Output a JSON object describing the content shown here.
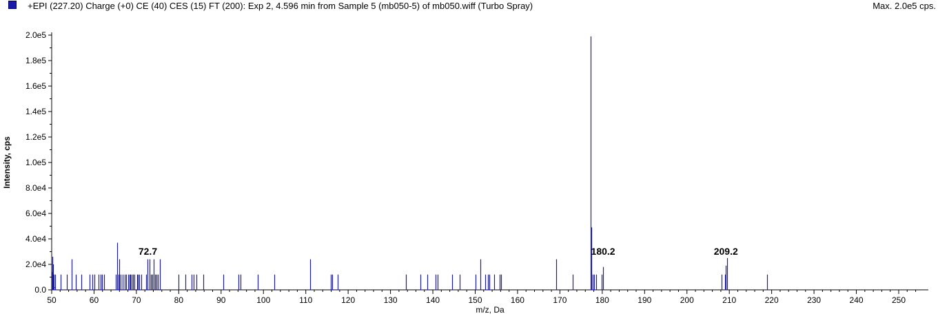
{
  "header": {
    "title": "+EPI (227.20) Charge (+0) CE (40) CES (15) FT (200): Exp 2, 4.596 min from Sample 5 (mb050-5) of mb050.wiff (Turbo Spray)",
    "max_label": "Max. 2.0e5 cps."
  },
  "chart_data": {
    "type": "bar",
    "xlabel": "m/z, Da",
    "ylabel": "Intensity, cps",
    "xlim": [
      50,
      257
    ],
    "ylim": [
      0,
      200000
    ],
    "x_ticks": [
      50,
      60,
      70,
      80,
      90,
      100,
      110,
      120,
      130,
      140,
      150,
      160,
      170,
      180,
      190,
      200,
      210,
      220,
      230,
      240,
      250
    ],
    "y_ticks": [
      {
        "value": 0,
        "label": "0.0"
      },
      {
        "value": 20000,
        "label": "2.0e4"
      },
      {
        "value": 40000,
        "label": "4.0e4"
      },
      {
        "value": 60000,
        "label": "6.0e4"
      },
      {
        "value": 80000,
        "label": "8.0e4"
      },
      {
        "value": 100000,
        "label": "1.0e5"
      },
      {
        "value": 120000,
        "label": "1.2e5"
      },
      {
        "value": 140000,
        "label": "1.4e5"
      },
      {
        "value": 160000,
        "label": "1.6e5"
      },
      {
        "value": 180000,
        "label": "1.8e5"
      },
      {
        "value": 200000,
        "label": "2.0e5"
      }
    ],
    "annotations": [
      {
        "x": 72.7,
        "label": "72.7"
      },
      {
        "x": 180.2,
        "label": "180.2"
      },
      {
        "x": 209.2,
        "label": "209.2"
      }
    ],
    "color": "#1a1aa8",
    "peaks": [
      [
        50.0,
        14000
      ],
      [
        50.1,
        26000
      ],
      [
        50.3,
        20000
      ],
      [
        50.5,
        12000
      ],
      [
        50.8,
        12000
      ],
      [
        52.1,
        12000
      ],
      [
        53.5,
        12000
      ],
      [
        54.8,
        24000
      ],
      [
        55.7,
        12000
      ],
      [
        57.0,
        12000
      ],
      [
        59.0,
        12000
      ],
      [
        59.6,
        12000
      ],
      [
        60.1,
        12000
      ],
      [
        61.1,
        12000
      ],
      [
        61.6,
        12000
      ],
      [
        61.9,
        12000
      ],
      [
        62.4,
        12000
      ],
      [
        65.2,
        12000
      ],
      [
        65.4,
        37000
      ],
      [
        65.8,
        12000
      ],
      [
        66.0,
        24000
      ],
      [
        66.3,
        12000
      ],
      [
        66.8,
        12000
      ],
      [
        67.3,
        12000
      ],
      [
        67.6,
        12000
      ],
      [
        68.1,
        12000
      ],
      [
        68.4,
        12000
      ],
      [
        68.6,
        12000
      ],
      [
        68.9,
        12000
      ],
      [
        69.2,
        12000
      ],
      [
        69.6,
        12000
      ],
      [
        70.1,
        12000
      ],
      [
        70.4,
        12000
      ],
      [
        70.7,
        12000
      ],
      [
        71.1,
        12000
      ],
      [
        72.3,
        12000
      ],
      [
        72.7,
        24000
      ],
      [
        73.1,
        24000
      ],
      [
        73.4,
        12000
      ],
      [
        73.7,
        12000
      ],
      [
        74.1,
        24000
      ],
      [
        74.4,
        12000
      ],
      [
        74.7,
        12000
      ],
      [
        75.1,
        12000
      ],
      [
        75.6,
        24000
      ],
      [
        80.0,
        12000
      ],
      [
        81.5,
        12000
      ],
      [
        83.0,
        12000
      ],
      [
        83.6,
        12000
      ],
      [
        84.1,
        12000
      ],
      [
        85.8,
        12000
      ],
      [
        90.5,
        12000
      ],
      [
        94.1,
        12000
      ],
      [
        94.6,
        12000
      ],
      [
        98.6,
        12000
      ],
      [
        102.6,
        12000
      ],
      [
        111.1,
        24000
      ],
      [
        115.9,
        12000
      ],
      [
        116.3,
        12000
      ],
      [
        117.6,
        12000
      ],
      [
        133.7,
        12000
      ],
      [
        137.1,
        12000
      ],
      [
        138.7,
        12000
      ],
      [
        140.6,
        12000
      ],
      [
        141.1,
        12000
      ],
      [
        144.6,
        12000
      ],
      [
        146.3,
        12000
      ],
      [
        150.1,
        12000
      ],
      [
        151.2,
        24000
      ],
      [
        152.3,
        12000
      ],
      [
        153.0,
        12000
      ],
      [
        153.3,
        12000
      ],
      [
        154.4,
        12000
      ],
      [
        155.7,
        12000
      ],
      [
        156.1,
        12000
      ],
      [
        169.1,
        24000
      ],
      [
        173.1,
        12000
      ],
      [
        177.2,
        199000
      ],
      [
        177.5,
        49000
      ],
      [
        177.8,
        12000
      ],
      [
        178.1,
        12000
      ],
      [
        178.5,
        12000
      ],
      [
        179.9,
        12000
      ],
      [
        180.2,
        18000
      ],
      [
        208.2,
        12000
      ],
      [
        209.0,
        12000
      ],
      [
        209.2,
        19000
      ],
      [
        209.5,
        25000
      ],
      [
        218.9,
        12000
      ]
    ]
  }
}
